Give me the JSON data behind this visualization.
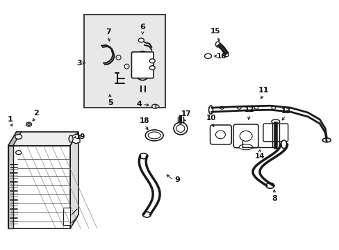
{
  "bg_color": "#ffffff",
  "line_color": "#1a1a1a",
  "text_color": "#111111",
  "box_fill": "#e8e8e8",
  "fig_width": 4.89,
  "fig_height": 3.6,
  "dpi": 100
}
